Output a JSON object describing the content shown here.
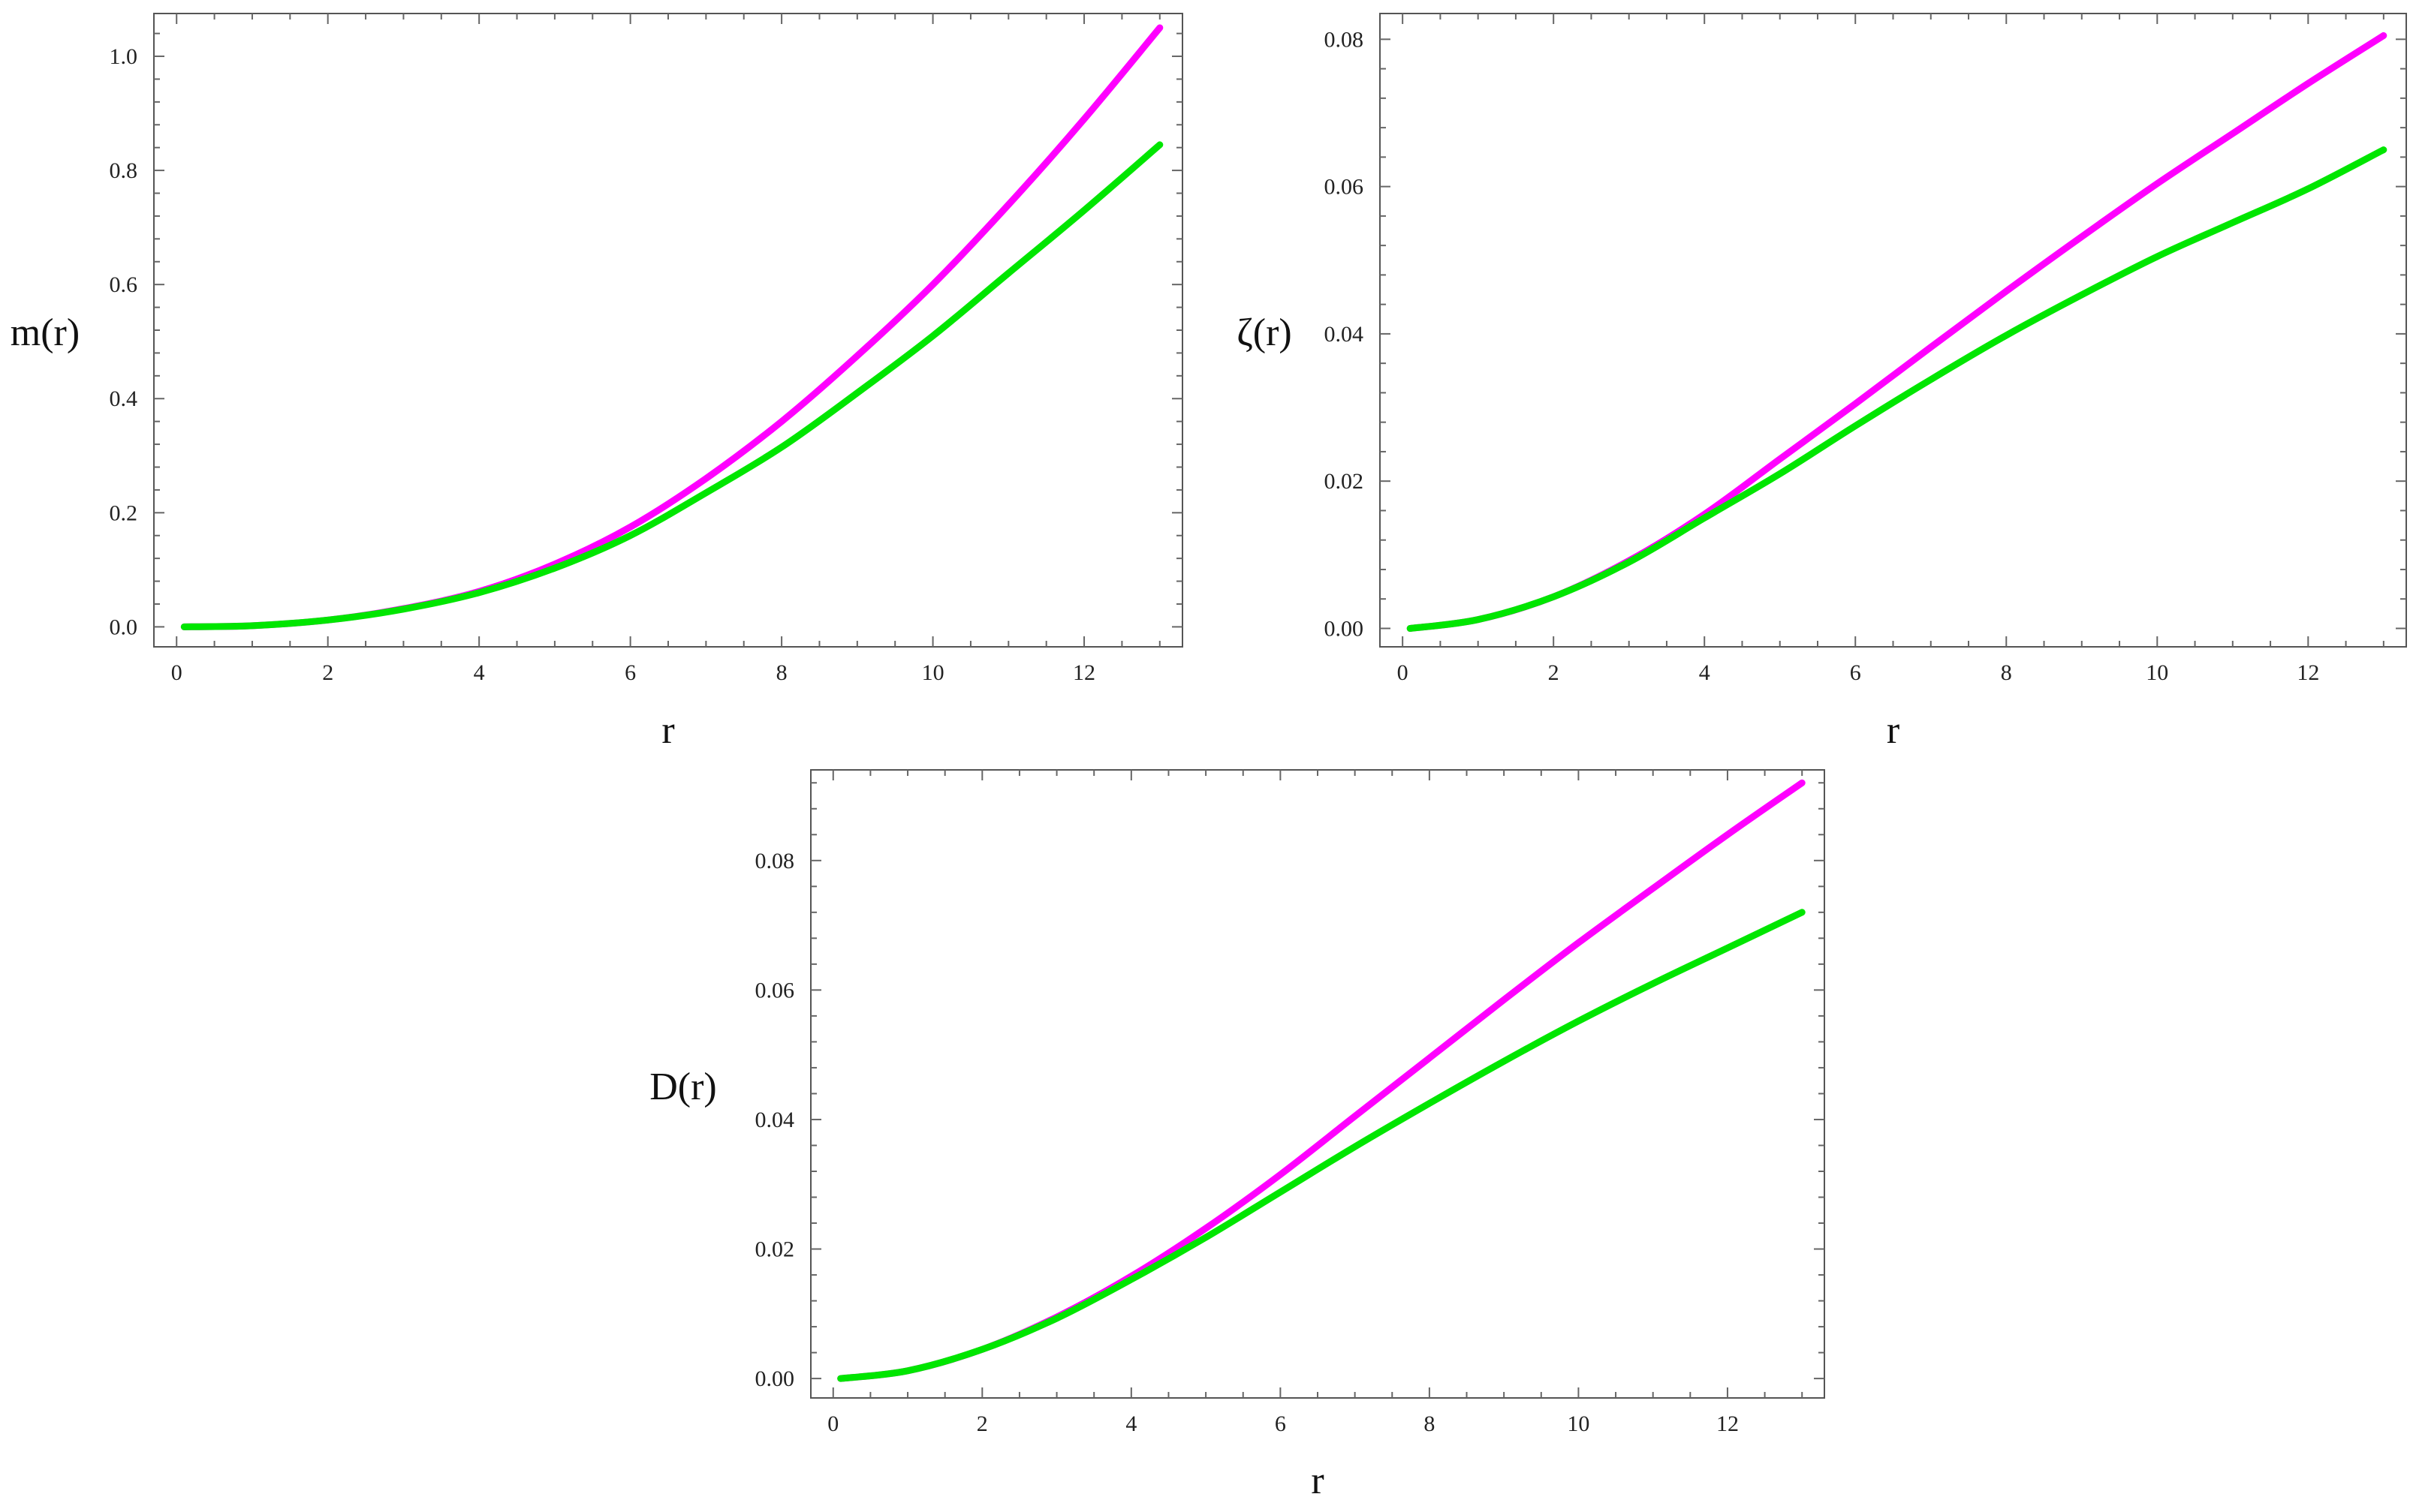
{
  "figure": {
    "panel_count": 3
  },
  "chart_data": [
    {
      "type": "line",
      "title": "",
      "xlabel": "r",
      "ylabel": "m(r)",
      "xlim": [
        -0.3,
        13.3
      ],
      "ylim": [
        -0.035,
        1.075
      ],
      "x_ticks": [
        0,
        2,
        4,
        6,
        8,
        10,
        12
      ],
      "y_ticks": [
        0.0,
        0.2,
        0.4,
        0.6,
        0.8,
        1.0
      ],
      "x_tick_labels": [
        "0",
        "2",
        "4",
        "6",
        "8",
        "10",
        "12"
      ],
      "y_tick_labels": [
        "0.0",
        "0.2",
        "0.4",
        "0.6",
        "0.8",
        "1.0"
      ],
      "grid": false,
      "legend": "none",
      "series": [
        {
          "color": "#ff00ff",
          "x": [
            0.1,
            1,
            2,
            3,
            4,
            5,
            6,
            7,
            8,
            9,
            10,
            11,
            12,
            13
          ],
          "y": [
            0.0,
            0.002,
            0.012,
            0.032,
            0.062,
            0.11,
            0.175,
            0.26,
            0.36,
            0.475,
            0.6,
            0.74,
            0.89,
            1.05
          ]
        },
        {
          "color": "#00e600",
          "x": [
            0.1,
            1,
            2,
            3,
            4,
            5,
            6,
            7,
            8,
            9,
            10,
            11,
            12,
            13
          ],
          "y": [
            0.0,
            0.002,
            0.012,
            0.031,
            0.06,
            0.103,
            0.16,
            0.235,
            0.315,
            0.41,
            0.51,
            0.62,
            0.73,
            0.845
          ]
        }
      ]
    },
    {
      "type": "line",
      "title": "",
      "xlabel": "r",
      "ylabel": "ζ(r)",
      "xlim": [
        -0.3,
        13.3
      ],
      "ylim": [
        -0.0025,
        0.0835
      ],
      "x_ticks": [
        0,
        2,
        4,
        6,
        8,
        10,
        12
      ],
      "y_ticks": [
        0.0,
        0.02,
        0.04,
        0.06,
        0.08
      ],
      "x_tick_labels": [
        "0",
        "2",
        "4",
        "6",
        "8",
        "10",
        "12"
      ],
      "y_tick_labels": [
        "0.00",
        "0.02",
        "0.04",
        "0.06",
        "0.08"
      ],
      "grid": false,
      "legend": "none",
      "series": [
        {
          "color": "#ff00ff",
          "x": [
            0.1,
            1,
            2,
            3,
            4,
            5,
            6,
            7,
            8,
            9,
            10,
            11,
            12,
            13
          ],
          "y": [
            0.0,
            0.0012,
            0.0043,
            0.0092,
            0.0155,
            0.023,
            0.0305,
            0.0382,
            0.0458,
            0.0532,
            0.0604,
            0.0672,
            0.074,
            0.0805
          ]
        },
        {
          "color": "#00e600",
          "x": [
            0.1,
            1,
            2,
            3,
            4,
            5,
            6,
            7,
            8,
            9,
            10,
            11,
            12,
            13
          ],
          "y": [
            0.0,
            0.0012,
            0.0043,
            0.009,
            0.015,
            0.021,
            0.0275,
            0.0338,
            0.0398,
            0.0453,
            0.0505,
            0.0551,
            0.0597,
            0.065
          ]
        }
      ]
    },
    {
      "type": "line",
      "title": "",
      "xlabel": "r",
      "ylabel": "D(r)",
      "xlim": [
        -0.3,
        13.3
      ],
      "ylim": [
        -0.003,
        0.094
      ],
      "x_ticks": [
        0,
        2,
        4,
        6,
        8,
        10,
        12
      ],
      "y_ticks": [
        0.0,
        0.02,
        0.04,
        0.06,
        0.08
      ],
      "x_tick_labels": [
        "0",
        "2",
        "4",
        "6",
        "8",
        "10",
        "12"
      ],
      "y_tick_labels": [
        "0.00",
        "0.02",
        "0.04",
        "0.06",
        "0.08"
      ],
      "grid": false,
      "legend": "none",
      "series": [
        {
          "color": "#ff00ff",
          "x": [
            0.1,
            1,
            2,
            3,
            4,
            5,
            6,
            7,
            8,
            9,
            10,
            11,
            12,
            13
          ],
          "y": [
            0.0,
            0.0012,
            0.0045,
            0.0095,
            0.0158,
            0.0232,
            0.0315,
            0.0405,
            0.0495,
            0.0585,
            0.0673,
            0.0757,
            0.084,
            0.092
          ]
        },
        {
          "color": "#00e600",
          "x": [
            0.1,
            1,
            2,
            3,
            4,
            5,
            6,
            7,
            8,
            9,
            10,
            11,
            12,
            13
          ],
          "y": [
            0.0,
            0.0012,
            0.0045,
            0.0093,
            0.0153,
            0.0218,
            0.0288,
            0.0358,
            0.0425,
            0.049,
            0.0552,
            0.061,
            0.0665,
            0.072
          ]
        }
      ]
    }
  ]
}
